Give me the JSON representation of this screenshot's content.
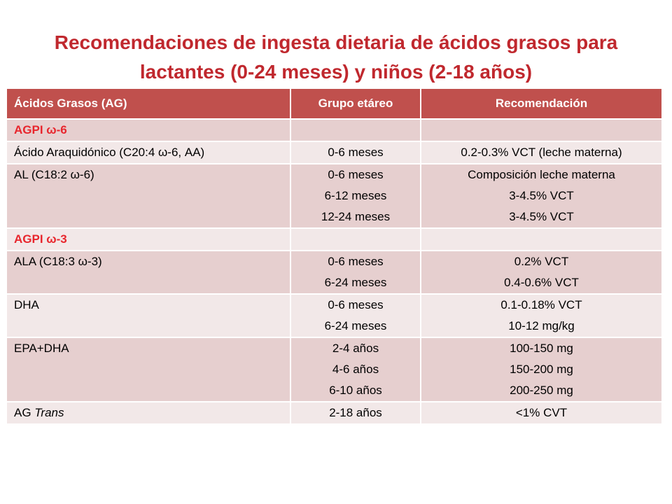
{
  "title": {
    "line1": "Recomendaciones de ingesta dietaria de ácidos grasos para",
    "line2": "lactantes (0-24 meses) y niños (2-18 años)"
  },
  "table": {
    "headers": [
      "Ácidos Grasos (AG)",
      "Grupo etáreo",
      "Recomendación"
    ],
    "rows": [
      {
        "fa": "AGPI ω-6",
        "group_label": true,
        "age": [],
        "rec": []
      },
      {
        "fa": "Ácido Araquidónico (C20:4 ω-6, AA)",
        "age": [
          "0-6 meses"
        ],
        "rec": [
          "0.2-0.3% VCT (leche materna)"
        ]
      },
      {
        "fa": "AL (C18:2  ω-6)",
        "age": [
          "0-6 meses",
          "6-12 meses",
          "12-24 meses"
        ],
        "rec": [
          "Composición leche materna",
          "3-4.5% VCT",
          "3-4.5% VCT"
        ]
      },
      {
        "fa": "AGPI ω-3",
        "group_label": true,
        "age": [],
        "rec": []
      },
      {
        "fa": "ALA (C18:3  ω-3)",
        "age": [
          "0-6 meses",
          "6-24 meses"
        ],
        "rec": [
          "0.2% VCT",
          "0.4-0.6% VCT"
        ]
      },
      {
        "fa": "DHA",
        "age": [
          "0-6 meses",
          "6-24 meses"
        ],
        "rec": [
          "0.1-0.18% VCT",
          "10-12 mg/kg"
        ]
      },
      {
        "fa": "EPA+DHA",
        "age": [
          "2-4 años",
          "4-6 años",
          "6-10 años"
        ],
        "rec": [
          "100-150 mg",
          "150-200 mg",
          "200-250 mg"
        ]
      },
      {
        "fa_prefix": "AG ",
        "fa_italic": "Trans",
        "age": [
          "2-18 años"
        ],
        "rec": [
          "<1% CVT"
        ]
      }
    ]
  },
  "colors": {
    "title": "#c0282e",
    "header_bg": "#c0504d",
    "row_odd": "#e6cfcf",
    "row_even": "#f2e8e8",
    "group_label": "#e8262d"
  }
}
